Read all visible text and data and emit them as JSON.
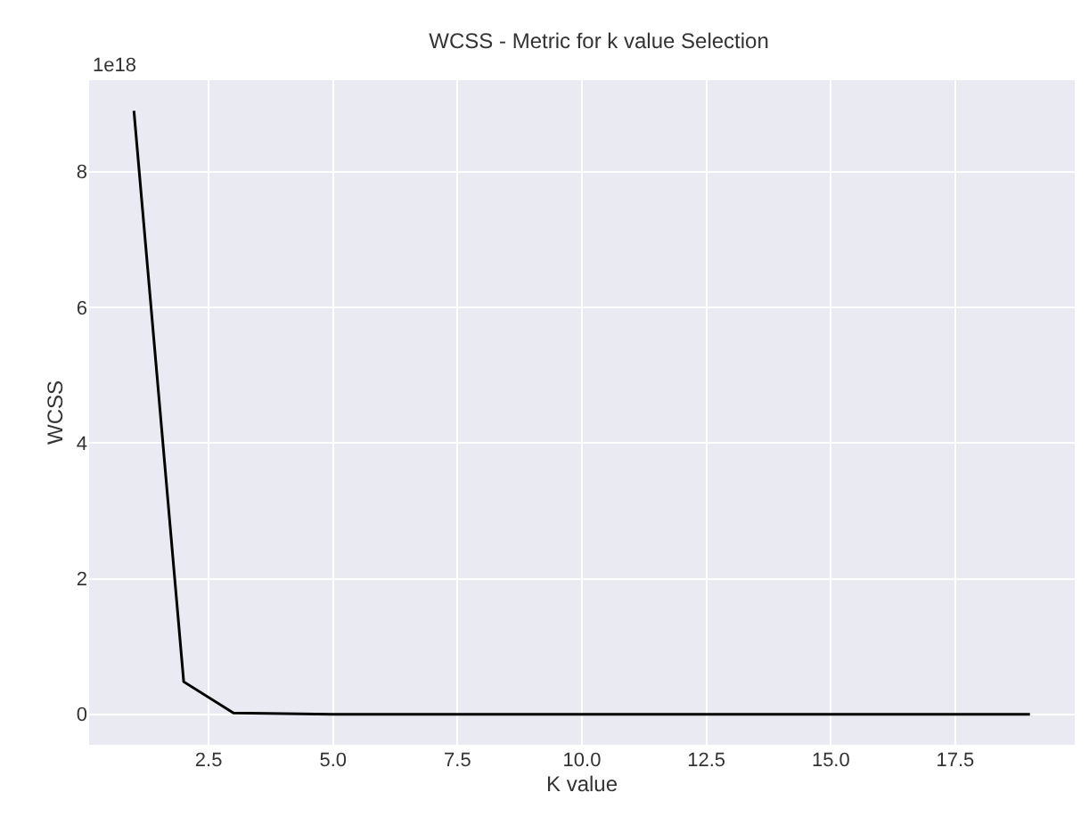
{
  "chart_data": {
    "type": "line",
    "title": "WCSS - Metric for k value Selection",
    "xlabel": "K value",
    "ylabel": "WCSS",
    "x": [
      1,
      2,
      3,
      4,
      5,
      6,
      7,
      8,
      9,
      10,
      11,
      12,
      13,
      14,
      15,
      16,
      17,
      18,
      19
    ],
    "series": [
      {
        "color": "#000000",
        "values": [
          8.9,
          0.48,
          0.02,
          0.01,
          0,
          0,
          0,
          0,
          0,
          0,
          0,
          0,
          0,
          0,
          0,
          0,
          0,
          0,
          0
        ]
      }
    ],
    "xlim": [
      0.1,
      19.9
    ],
    "ylim": [
      -0.45,
      9.35
    ],
    "xticks": [
      {
        "value": 2.5,
        "label": "2.5"
      },
      {
        "value": 5,
        "label": "5.0"
      },
      {
        "value": 7.5,
        "label": "7.5"
      },
      {
        "value": 10,
        "label": "10.0"
      },
      {
        "value": 12.5,
        "label": "12.5"
      },
      {
        "value": 15,
        "label": "15.0"
      },
      {
        "value": 17.5,
        "label": "17.5"
      }
    ],
    "yticks": [
      0,
      2,
      4,
      6,
      8
    ],
    "annotations": [
      "1e18"
    ],
    "grid": true,
    "marker": "none",
    "line_style": "solid"
  }
}
